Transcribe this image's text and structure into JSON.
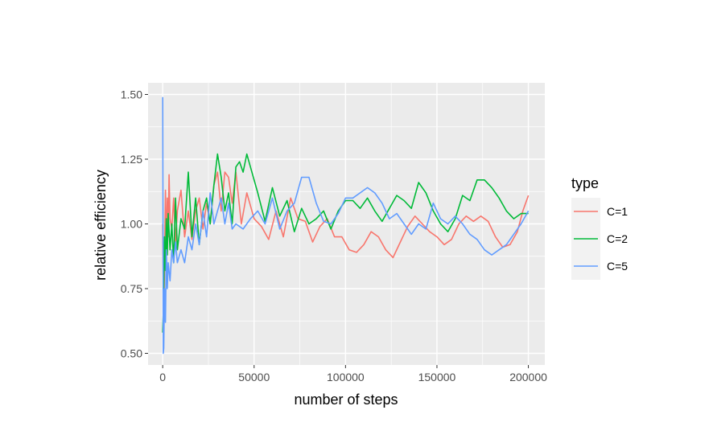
{
  "chart_data": {
    "type": "line",
    "title": "",
    "xlabel": "number of steps",
    "ylabel": "relative efficiency",
    "xlim": [
      -8000,
      209000
    ],
    "ylim": [
      0.455,
      1.545
    ],
    "x_ticks": [
      0,
      50000,
      100000,
      150000,
      200000
    ],
    "x_tick_labels": [
      "0",
      "50000",
      "100000",
      "150000",
      "200000"
    ],
    "y_ticks": [
      0.5,
      0.75,
      1.0,
      1.25,
      1.5
    ],
    "y_tick_labels": [
      "0.50",
      "0.75",
      "1.00",
      "1.25",
      "1.50"
    ],
    "grid": true,
    "panel_background": "#ebebeb",
    "grid_color": "#ffffff",
    "legend": {
      "title": "type",
      "position": "right"
    },
    "series": [
      {
        "name": "C=1",
        "color": "#f8766d",
        "x": [
          0,
          500,
          1000,
          1500,
          2000,
          2500,
          3000,
          3500,
          4000,
          5000,
          6000,
          7000,
          8000,
          10000,
          12000,
          14000,
          16000,
          18000,
          20000,
          22000,
          24000,
          26000,
          28000,
          30000,
          32000,
          34000,
          36000,
          38000,
          40000,
          43000,
          46000,
          50000,
          54000,
          58000,
          62000,
          66000,
          70000,
          74000,
          78000,
          82000,
          86000,
          90000,
          94000,
          98000,
          102000,
          106000,
          110000,
          114000,
          118000,
          122000,
          126000,
          130000,
          134000,
          138000,
          142000,
          146000,
          150000,
          154000,
          158000,
          162000,
          166000,
          170000,
          174000,
          178000,
          182000,
          186000,
          190000,
          194000,
          197000,
          200000
        ],
        "y": [
          1.0,
          0.62,
          0.82,
          1.13,
          0.9,
          1.1,
          0.95,
          1.19,
          1.02,
          0.98,
          1.1,
          0.93,
          1.05,
          1.13,
          0.95,
          1.05,
          0.94,
          1.05,
          1.1,
          0.98,
          1.08,
          1.0,
          1.15,
          1.2,
          1.05,
          1.2,
          1.18,
          1.08,
          1.2,
          1.0,
          1.12,
          1.02,
          0.99,
          0.94,
          1.05,
          0.95,
          1.1,
          1.02,
          1.01,
          0.93,
          0.99,
          1.02,
          0.95,
          0.95,
          0.9,
          0.89,
          0.92,
          0.97,
          0.95,
          0.9,
          0.87,
          0.93,
          0.99,
          1.03,
          1.0,
          0.97,
          0.95,
          0.92,
          0.94,
          1.0,
          1.03,
          1.01,
          1.03,
          1.01,
          0.95,
          0.91,
          0.92,
          0.97,
          1.05,
          1.11
        ]
      },
      {
        "name": "C=2",
        "color": "#00ba38",
        "x": [
          0,
          500,
          1000,
          1500,
          2000,
          2500,
          3000,
          4000,
          5000,
          6000,
          7000,
          8000,
          10000,
          12000,
          14000,
          16000,
          18000,
          20000,
          22000,
          24000,
          26000,
          28000,
          30000,
          32000,
          34000,
          36000,
          38000,
          40000,
          42000,
          44000,
          46000,
          48000,
          52000,
          56000,
          60000,
          64000,
          68000,
          72000,
          76000,
          80000,
          84000,
          88000,
          92000,
          96000,
          100000,
          104000,
          108000,
          112000,
          116000,
          120000,
          124000,
          128000,
          132000,
          136000,
          140000,
          144000,
          148000,
          152000,
          156000,
          160000,
          164000,
          168000,
          172000,
          176000,
          180000,
          184000,
          188000,
          192000,
          196000,
          200000
        ],
        "y": [
          0.58,
          0.7,
          0.95,
          0.82,
          1.02,
          0.88,
          1.04,
          0.9,
          1.0,
          0.85,
          1.1,
          0.9,
          1.02,
          0.98,
          1.2,
          0.95,
          1.1,
          0.92,
          1.05,
          1.1,
          1.0,
          1.15,
          1.27,
          1.18,
          1.05,
          1.12,
          1.0,
          1.22,
          1.24,
          1.2,
          1.27,
          1.22,
          1.12,
          1.01,
          1.14,
          1.03,
          1.09,
          0.97,
          1.06,
          1.0,
          1.02,
          1.05,
          0.98,
          1.05,
          1.09,
          1.09,
          1.06,
          1.1,
          1.05,
          1.01,
          1.06,
          1.11,
          1.09,
          1.06,
          1.16,
          1.12,
          1.05,
          1.0,
          0.97,
          1.02,
          1.11,
          1.09,
          1.17,
          1.17,
          1.14,
          1.1,
          1.05,
          1.02,
          1.04,
          1.04
        ]
      },
      {
        "name": "C=5",
        "color": "#619cff",
        "x": [
          0,
          300,
          600,
          1000,
          1500,
          2000,
          2500,
          3000,
          4000,
          5000,
          6000,
          7000,
          8000,
          10000,
          12000,
          14000,
          16000,
          18000,
          20000,
          22000,
          24000,
          26000,
          28000,
          30000,
          32000,
          34000,
          36000,
          38000,
          40000,
          44000,
          48000,
          52000,
          56000,
          60000,
          64000,
          68000,
          72000,
          76000,
          80000,
          84000,
          88000,
          92000,
          96000,
          100000,
          104000,
          108000,
          112000,
          116000,
          120000,
          124000,
          128000,
          132000,
          136000,
          140000,
          144000,
          148000,
          152000,
          156000,
          160000,
          164000,
          168000,
          172000,
          176000,
          180000,
          184000,
          188000,
          192000,
          196000,
          200000
        ],
        "y": [
          1.49,
          0.5,
          0.52,
          0.75,
          0.62,
          0.9,
          0.75,
          0.85,
          0.78,
          0.9,
          0.85,
          0.93,
          0.85,
          0.9,
          0.85,
          0.95,
          0.9,
          1.0,
          0.92,
          1.05,
          0.95,
          1.12,
          1.0,
          1.05,
          1.1,
          1.0,
          1.08,
          0.98,
          1.0,
          0.98,
          1.02,
          1.05,
          1.0,
          1.1,
          0.98,
          1.05,
          1.08,
          1.18,
          1.18,
          1.08,
          1.01,
          1.0,
          1.04,
          1.1,
          1.1,
          1.12,
          1.14,
          1.12,
          1.08,
          1.02,
          1.04,
          1.0,
          0.96,
          1.0,
          0.98,
          1.08,
          1.02,
          1.0,
          1.03,
          1.0,
          0.96,
          0.94,
          0.9,
          0.88,
          0.9,
          0.92,
          0.96,
          1.0,
          1.05
        ]
      }
    ]
  }
}
